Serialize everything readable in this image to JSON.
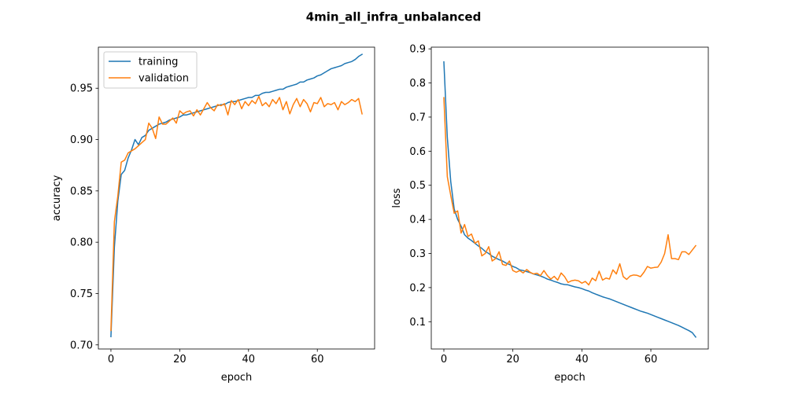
{
  "figure": {
    "title": "4min_all_infra_unbalanced"
  },
  "chart_data": [
    {
      "type": "line",
      "title": "",
      "xlabel": "epoch",
      "ylabel": "accuracy",
      "xlim": [
        -3.65,
        76.65
      ],
      "ylim": [
        0.696,
        0.99
      ],
      "xticks": [
        0,
        20,
        40,
        60
      ],
      "yticks": [
        0.7,
        0.75,
        0.8,
        0.85,
        0.9,
        0.95
      ],
      "yticklabels": [
        "0.70",
        "0.75",
        "0.80",
        "0.85",
        "0.90",
        "0.95"
      ],
      "grid": false,
      "legend": "upper-left",
      "x": [
        0,
        1,
        2,
        3,
        4,
        5,
        6,
        7,
        8,
        9,
        10,
        11,
        12,
        13,
        14,
        15,
        16,
        17,
        18,
        19,
        20,
        21,
        22,
        23,
        24,
        25,
        26,
        27,
        28,
        29,
        30,
        31,
        32,
        33,
        34,
        35,
        36,
        37,
        38,
        39,
        40,
        41,
        42,
        43,
        44,
        45,
        46,
        47,
        48,
        49,
        50,
        51,
        52,
        53,
        54,
        55,
        56,
        57,
        58,
        59,
        60,
        61,
        62,
        63,
        64,
        65,
        66,
        67,
        68,
        69,
        70,
        71,
        72,
        73
      ],
      "series": [
        {
          "name": "training",
          "color": "#1f77b4",
          "values": [
            0.708,
            0.795,
            0.84,
            0.866,
            0.87,
            0.882,
            0.89,
            0.9,
            0.895,
            0.902,
            0.904,
            0.909,
            0.911,
            0.913,
            0.915,
            0.916,
            0.917,
            0.919,
            0.92,
            0.921,
            0.922,
            0.924,
            0.924,
            0.925,
            0.926,
            0.927,
            0.928,
            0.929,
            0.93,
            0.931,
            0.932,
            0.933,
            0.934,
            0.934,
            0.936,
            0.937,
            0.937,
            0.938,
            0.939,
            0.94,
            0.941,
            0.941,
            0.943,
            0.943,
            0.945,
            0.946,
            0.946,
            0.947,
            0.948,
            0.949,
            0.949,
            0.951,
            0.952,
            0.953,
            0.954,
            0.956,
            0.956,
            0.958,
            0.959,
            0.96,
            0.962,
            0.963,
            0.965,
            0.967,
            0.969,
            0.97,
            0.971,
            0.972,
            0.974,
            0.975,
            0.976,
            0.978,
            0.981,
            0.983
          ]
        },
        {
          "name": "validation",
          "color": "#ff7f0e",
          "values": [
            0.714,
            0.82,
            0.845,
            0.878,
            0.88,
            0.887,
            0.889,
            0.891,
            0.894,
            0.897,
            0.9,
            0.916,
            0.911,
            0.901,
            0.922,
            0.915,
            0.915,
            0.918,
            0.921,
            0.916,
            0.928,
            0.925,
            0.927,
            0.928,
            0.923,
            0.929,
            0.924,
            0.93,
            0.936,
            0.931,
            0.928,
            0.934,
            0.933,
            0.935,
            0.924,
            0.938,
            0.934,
            0.939,
            0.93,
            0.937,
            0.933,
            0.938,
            0.935,
            0.942,
            0.933,
            0.936,
            0.932,
            0.939,
            0.935,
            0.941,
            0.929,
            0.937,
            0.925,
            0.934,
            0.94,
            0.932,
            0.939,
            0.935,
            0.927,
            0.936,
            0.935,
            0.941,
            0.932,
            0.935,
            0.934,
            0.936,
            0.929,
            0.937,
            0.934,
            0.936,
            0.939,
            0.937,
            0.94,
            0.925
          ]
        }
      ]
    },
    {
      "type": "line",
      "title": "",
      "xlabel": "epoch",
      "ylabel": "loss",
      "xlim": [
        -3.65,
        76.65
      ],
      "ylim": [
        0.02,
        0.905
      ],
      "xticks": [
        0,
        20,
        40,
        60
      ],
      "yticks": [
        0.1,
        0.2,
        0.3,
        0.4,
        0.5,
        0.6,
        0.7,
        0.8,
        0.9
      ],
      "yticklabels": [
        "0.1",
        "0.2",
        "0.3",
        "0.4",
        "0.5",
        "0.6",
        "0.7",
        "0.8",
        "0.9"
      ],
      "grid": false,
      "legend": "none",
      "x": [
        0,
        1,
        2,
        3,
        4,
        5,
        6,
        7,
        8,
        9,
        10,
        11,
        12,
        13,
        14,
        15,
        16,
        17,
        18,
        19,
        20,
        21,
        22,
        23,
        24,
        25,
        26,
        27,
        28,
        29,
        30,
        31,
        32,
        33,
        34,
        35,
        36,
        37,
        38,
        39,
        40,
        41,
        42,
        43,
        44,
        45,
        46,
        47,
        48,
        49,
        50,
        51,
        52,
        53,
        54,
        55,
        56,
        57,
        58,
        59,
        60,
        61,
        62,
        63,
        64,
        65,
        66,
        67,
        68,
        69,
        70,
        71,
        72,
        73
      ],
      "series": [
        {
          "name": "training",
          "color": "#1f77b4",
          "values": [
            0.862,
            0.64,
            0.51,
            0.43,
            0.4,
            0.38,
            0.355,
            0.345,
            0.338,
            0.33,
            0.322,
            0.315,
            0.306,
            0.3,
            0.292,
            0.287,
            0.282,
            0.278,
            0.272,
            0.268,
            0.262,
            0.258,
            0.252,
            0.25,
            0.247,
            0.244,
            0.24,
            0.237,
            0.234,
            0.23,
            0.225,
            0.222,
            0.218,
            0.215,
            0.211,
            0.209,
            0.208,
            0.205,
            0.202,
            0.2,
            0.197,
            0.193,
            0.19,
            0.185,
            0.181,
            0.177,
            0.173,
            0.17,
            0.167,
            0.163,
            0.159,
            0.155,
            0.151,
            0.147,
            0.143,
            0.139,
            0.135,
            0.131,
            0.128,
            0.125,
            0.121,
            0.117,
            0.113,
            0.109,
            0.105,
            0.101,
            0.097,
            0.093,
            0.089,
            0.084,
            0.079,
            0.074,
            0.068,
            0.055
          ]
        },
        {
          "name": "validation",
          "color": "#ff7f0e",
          "values": [
            0.757,
            0.525,
            0.47,
            0.418,
            0.425,
            0.36,
            0.385,
            0.35,
            0.357,
            0.33,
            0.337,
            0.293,
            0.3,
            0.32,
            0.278,
            0.285,
            0.305,
            0.268,
            0.265,
            0.278,
            0.25,
            0.245,
            0.25,
            0.243,
            0.253,
            0.245,
            0.24,
            0.242,
            0.235,
            0.25,
            0.235,
            0.225,
            0.233,
            0.222,
            0.243,
            0.232,
            0.215,
            0.22,
            0.222,
            0.22,
            0.213,
            0.218,
            0.208,
            0.228,
            0.22,
            0.248,
            0.222,
            0.228,
            0.225,
            0.252,
            0.24,
            0.27,
            0.232,
            0.224,
            0.234,
            0.237,
            0.236,
            0.232,
            0.245,
            0.262,
            0.257,
            0.259,
            0.26,
            0.275,
            0.3,
            0.355,
            0.285,
            0.285,
            0.282,
            0.305,
            0.305,
            0.297,
            0.31,
            0.323
          ]
        }
      ]
    }
  ]
}
